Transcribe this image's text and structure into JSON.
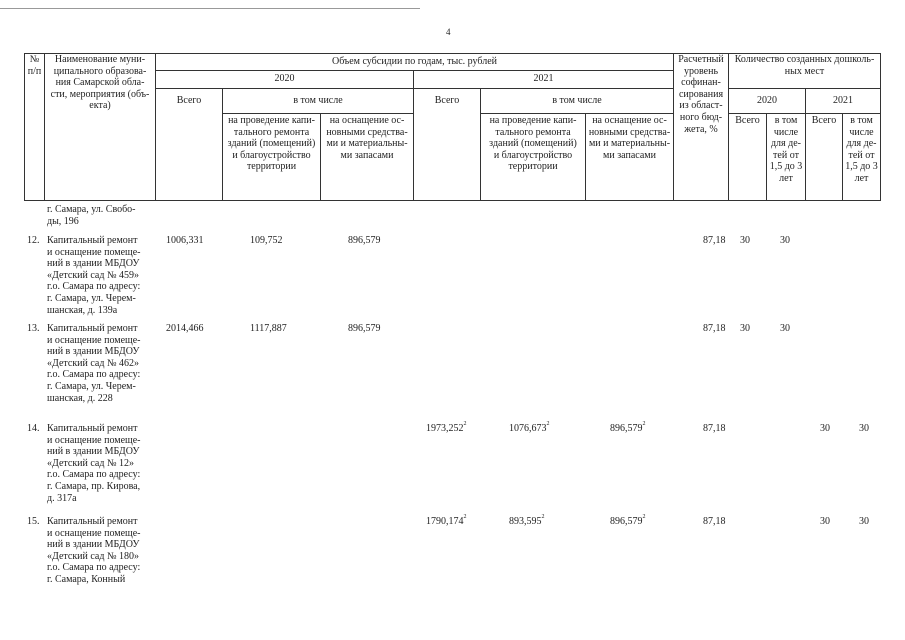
{
  "page_number": "4",
  "header": {
    "num": "№\nп/п",
    "name": "Наименование муни-\nципального образова-\nния Самарской обла-\nсти, мероприятия (объ-\nекта)",
    "subsidy": "Объем субсидии по годам, тыс. рублей",
    "year_2020": "2020",
    "year_2021": "2021",
    "total": "Всего",
    "including": "в том числе",
    "capital": "на проведение капи-\nтального ремонта\nзданий (помещений)\nи благоустройство\nтерритории",
    "equipment": "на оснащение ос-\nновными средства-\nми и материальны-\nми запасами",
    "rate": "Расчетный\nуровень\nсофинан-\nсирования\nиз област-\nного бюд-\nжета, %",
    "places": "Количество созданных дошколь-\nных мест",
    "children": "в том\nчисле\nдля де-\nтей от\n1,5 до 3\nлет"
  },
  "continuation": "г. Самара, ул. Свобо-\nды, 196",
  "rows": [
    {
      "num": "12.",
      "name": "Капитальный ремонт\nи оснащение помеще-\nний в здании МБДОУ\n«Детский сад № 459»\nг.о. Самара по адресу:\nг. Самара, ул. Черем-\nшанская, д. 139а",
      "t2020": "1006,331",
      "c2020": "109,752",
      "e2020": "896,579",
      "t2021": "",
      "c2021": "",
      "e2021": "",
      "note": "",
      "rate": "87,18",
      "p2020": "30",
      "k2020": "30",
      "p2021": "",
      "k2021": ""
    },
    {
      "num": "13.",
      "name": "Капитальный ремонт\nи оснащение помеще-\nний в здании МБДОУ\n«Детский сад № 462»\nг.о. Самара по адресу:\nг. Самара, ул. Черем-\nшанская, д. 228",
      "t2020": "2014,466",
      "c2020": "1117,887",
      "e2020": "896,579",
      "t2021": "",
      "c2021": "",
      "e2021": "",
      "note": "",
      "rate": "87,18",
      "p2020": "30",
      "k2020": "30",
      "p2021": "",
      "k2021": ""
    },
    {
      "num": "14.",
      "name": "Капитальный ремонт\nи оснащение помеще-\nний в здании МБДОУ\n«Детский сад № 12»\nг.о. Самара по адресу:\nг. Самара, пр. Кирова,\nд. 317а",
      "t2020": "",
      "c2020": "",
      "e2020": "",
      "t2021": "1973,252",
      "c2021": "1076,673",
      "e2021": "896,579",
      "note": "2",
      "rate": "87,18",
      "p2020": "",
      "k2020": "",
      "p2021": "30",
      "k2021": "30"
    },
    {
      "num": "15.",
      "name": "Капитальный ремонт\nи оснащение помеще-\nний в здании МБДОУ\n«Детский сад № 180»\nг.о. Самара по адресу:\nг. Самара, Конный",
      "t2020": "",
      "c2020": "",
      "e2020": "",
      "t2021": "1790,174",
      "c2021": "893,595",
      "e2021": "896,579",
      "note": "2",
      "rate": "87,18",
      "p2020": "",
      "k2020": "",
      "p2021": "30",
      "k2021": "30"
    }
  ]
}
